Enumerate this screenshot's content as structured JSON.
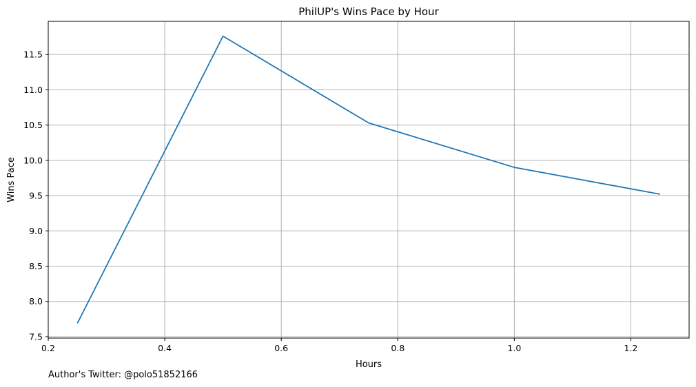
{
  "chart_data": {
    "type": "line",
    "title": "PhilUP's Wins Pace by Hour",
    "xlabel": "Hours",
    "ylabel": "Wins Pace",
    "xlim": [
      0.2,
      1.3
    ],
    "ylim": [
      7.48,
      11.97
    ],
    "xticks": [
      "0.2",
      "0.4",
      "0.6",
      "0.8",
      "1.0",
      "1.2"
    ],
    "yticks": [
      "7.5",
      "8.0",
      "8.5",
      "9.0",
      "9.5",
      "10.0",
      "10.5",
      "11.0",
      "11.5"
    ],
    "grid": true,
    "series": [
      {
        "color": "#1f77b4",
        "x": [
          0.25,
          0.5,
          0.75,
          1.0,
          1.25
        ],
        "y": [
          7.69,
          11.76,
          10.53,
          9.9,
          9.52
        ]
      }
    ]
  },
  "footnote": "Author's Twitter: @polo51852166"
}
